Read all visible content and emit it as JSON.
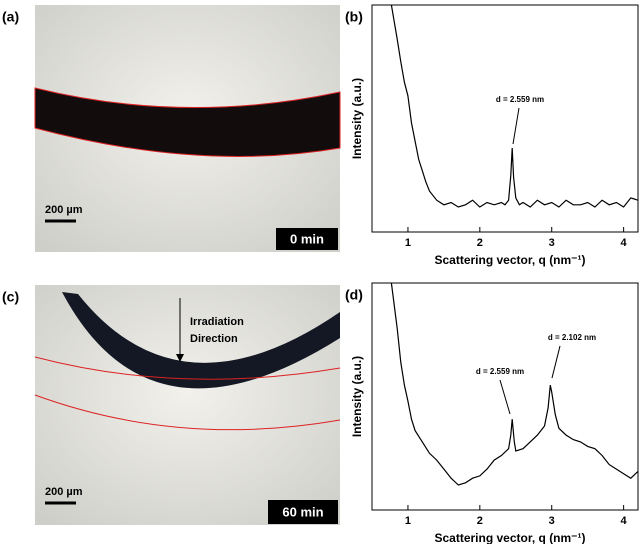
{
  "images": [
    {
      "label": "(a)",
      "scale_bar": "200 µm",
      "time": "0 min"
    },
    {
      "label": "(c)",
      "scale_bar": "200 µm",
      "time": "60 min",
      "annotation": [
        "Irradiation",
        "Direction"
      ]
    }
  ],
  "chart_data": [
    {
      "type": "line",
      "label": "(b)",
      "xlabel": "Scattering vector, q (nm⁻¹)",
      "ylabel": "Intensity (a.u.)",
      "xlim": [
        0.5,
        4.2
      ],
      "xticks": [
        1,
        2,
        3,
        4
      ],
      "ylim": [
        0,
        100
      ],
      "color": "#000000",
      "x": [
        0.77,
        0.85,
        0.9,
        0.95,
        1.0,
        1.05,
        1.1,
        1.15,
        1.2,
        1.25,
        1.3,
        1.4,
        1.5,
        1.6,
        1.7,
        1.8,
        1.9,
        2.0,
        2.1,
        2.2,
        2.3,
        2.35,
        2.4,
        2.43,
        2.45,
        2.47,
        2.5,
        2.55,
        2.6,
        2.7,
        2.8,
        2.9,
        3.0,
        3.1,
        3.2,
        3.3,
        3.4,
        3.5,
        3.6,
        3.7,
        3.8,
        3.9,
        4.0,
        4.1,
        4.2
      ],
      "values": [
        100,
        85,
        75,
        66,
        60,
        48,
        40,
        32,
        27,
        22,
        18,
        14,
        12,
        13,
        11,
        12,
        14,
        11,
        13,
        12,
        13,
        12,
        14,
        25,
        37,
        24,
        15,
        12,
        13,
        11,
        14,
        12,
        13,
        11,
        14,
        12,
        12,
        13,
        11,
        14,
        12,
        13,
        11,
        15,
        14
      ],
      "annotations": [
        "d = 2.559 nm"
      ]
    },
    {
      "type": "line",
      "label": "(d)",
      "xlabel": "Scattering vector, q (nm⁻¹)",
      "ylabel": "Intensity (a.u.)",
      "xlim": [
        0.5,
        4.2
      ],
      "xticks": [
        1,
        2,
        3,
        4
      ],
      "ylim": [
        0,
        100
      ],
      "color": "#000000",
      "x": [
        0.77,
        0.85,
        0.9,
        0.95,
        1.0,
        1.05,
        1.1,
        1.2,
        1.3,
        1.4,
        1.5,
        1.6,
        1.7,
        1.8,
        1.9,
        2.0,
        2.1,
        2.2,
        2.3,
        2.4,
        2.43,
        2.45,
        2.48,
        2.5,
        2.6,
        2.7,
        2.8,
        2.9,
        2.95,
        2.98,
        3.0,
        3.05,
        3.1,
        3.2,
        3.3,
        3.4,
        3.5,
        3.6,
        3.7,
        3.8,
        3.9,
        4.0,
        4.1,
        4.2
      ],
      "values": [
        100,
        80,
        65,
        55,
        48,
        40,
        35,
        30,
        25,
        22,
        18,
        14,
        11,
        12,
        14,
        15,
        18,
        22,
        24,
        27,
        33,
        40,
        30,
        26,
        27,
        30,
        33,
        37,
        45,
        55,
        52,
        42,
        36,
        33,
        31,
        30,
        28,
        27,
        24,
        20,
        18,
        16,
        14,
        17
      ],
      "annotations": [
        "d = 2.559 nm",
        "d = 2.102 nm"
      ]
    }
  ]
}
